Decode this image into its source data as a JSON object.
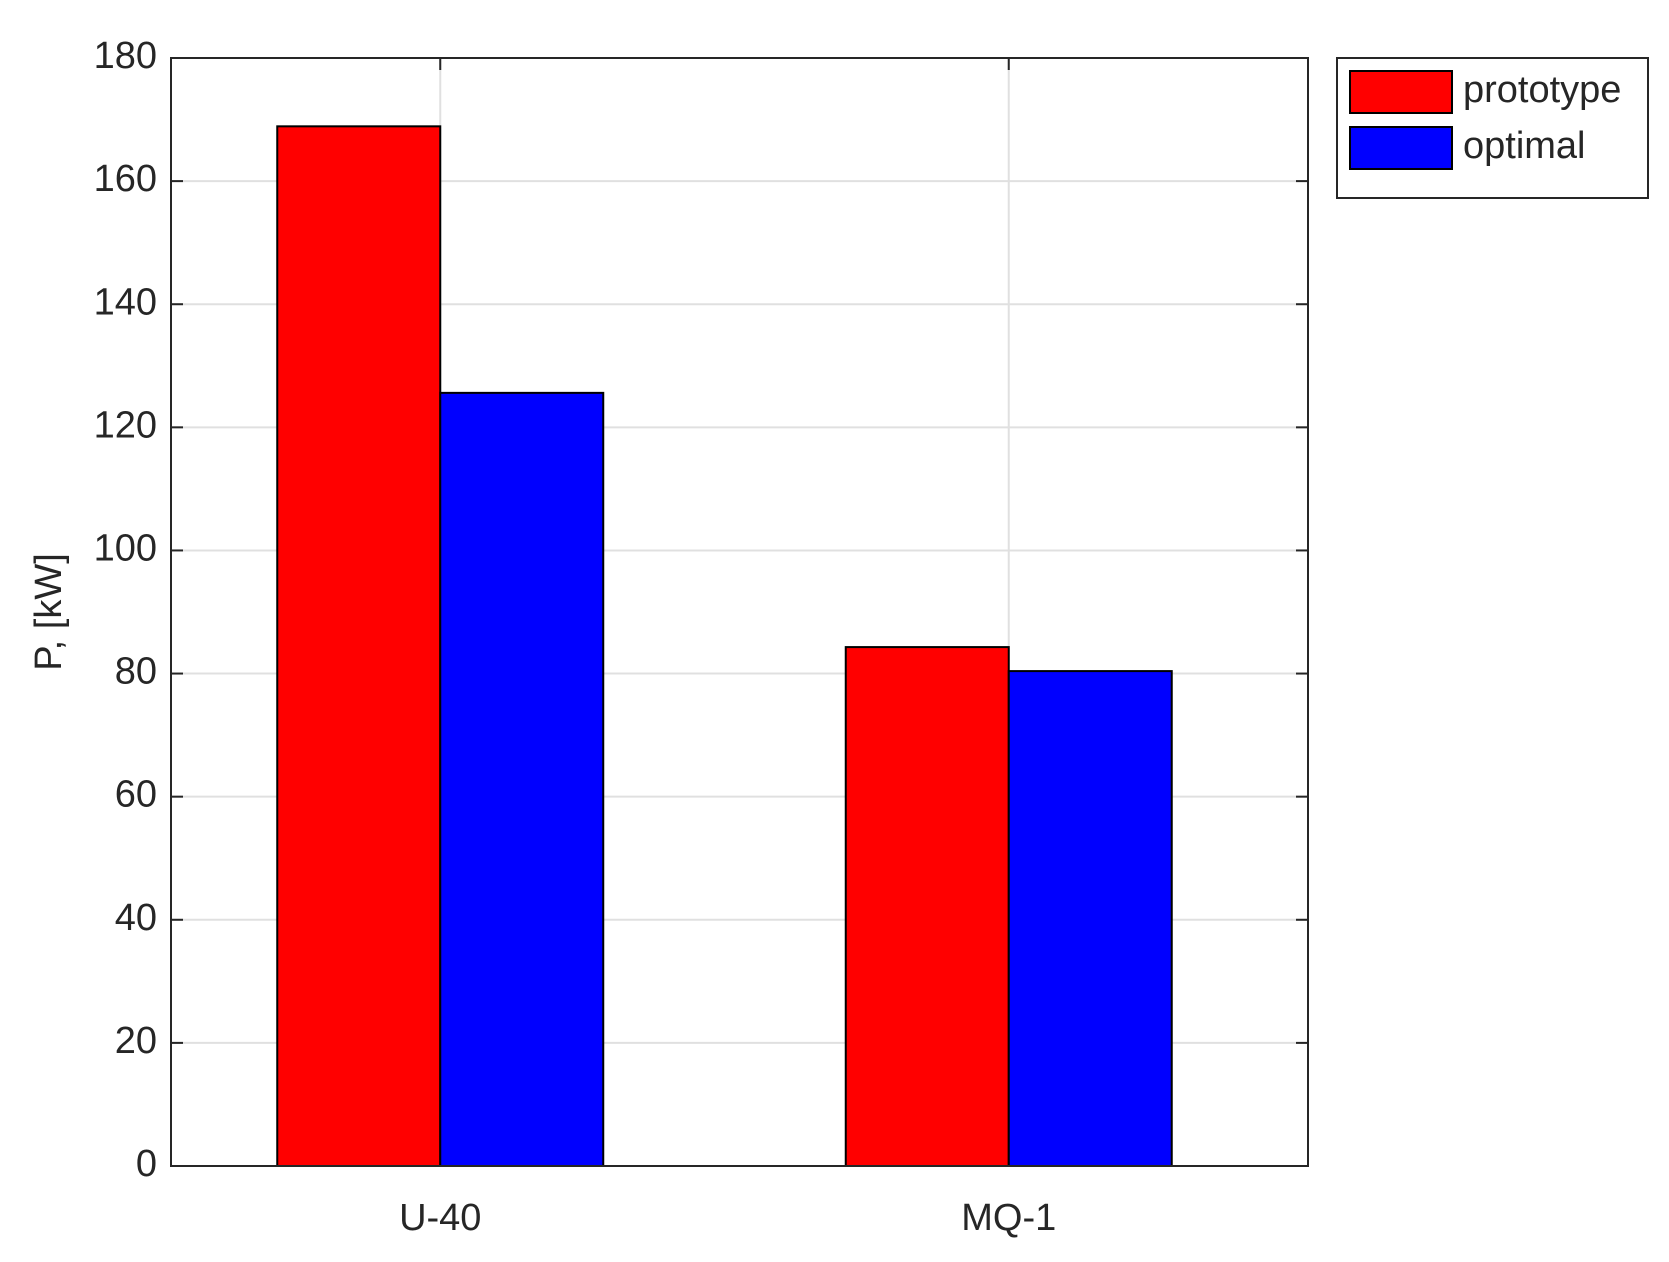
{
  "chart_data": {
    "type": "bar",
    "ylabel": "P, [kW]",
    "categories": [
      "U-40",
      "MQ-1"
    ],
    "series": [
      {
        "name": "prototype",
        "color": "#ff0000",
        "values": [
          168.9,
          84.3
        ]
      },
      {
        "name": "optimal",
        "color": "#0000ff",
        "values": [
          125.6,
          80.4
        ]
      }
    ],
    "ylim": [
      0,
      180
    ],
    "yticks": [
      0,
      20,
      40,
      60,
      80,
      100,
      120,
      140,
      160,
      180
    ],
    "grid": true,
    "legend": "outside-top-right"
  }
}
